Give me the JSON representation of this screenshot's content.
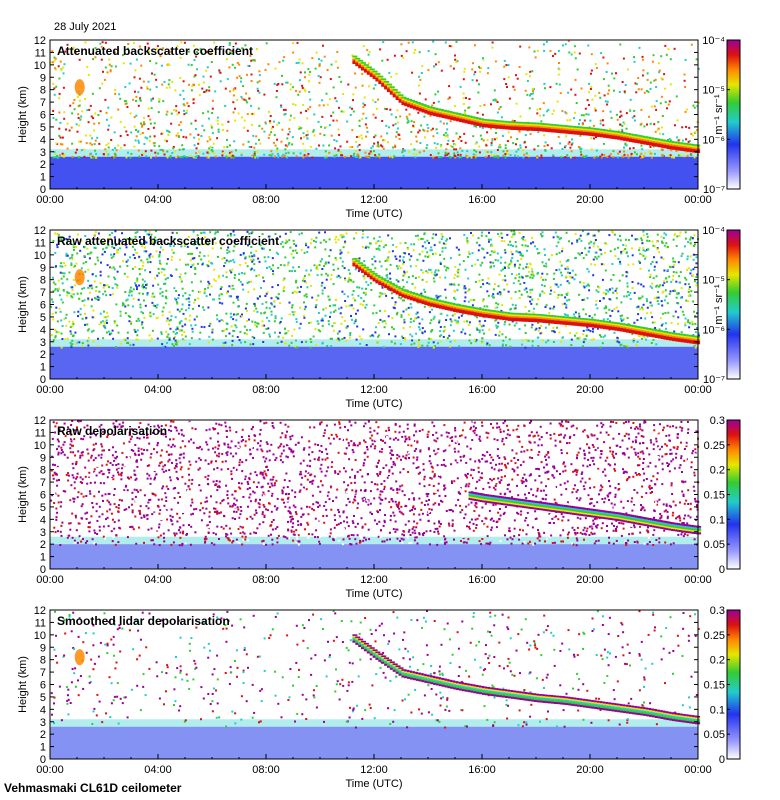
{
  "header": {
    "date": "28 July 2021"
  },
  "footer": {
    "site": "Vehmasmaki CL61D ceilometer"
  },
  "colors": {
    "white": "#ffffff",
    "blue": "#2233ee",
    "cyan": "#22cccc",
    "green": "#33cc33",
    "yellow": "#e6e600",
    "orange": "#ff8800",
    "red": "#dd1111",
    "purple": "#990099"
  },
  "chart_data": [
    {
      "type": "heatmap",
      "title": "Attenuated backscatter coefficient",
      "xlabel": "Time (UTC)",
      "ylabel": "Height (km)",
      "x_ticks": [
        "00:00",
        "04:00",
        "08:00",
        "12:00",
        "16:00",
        "20:00",
        "00:00"
      ],
      "xlim_hours": [
        0,
        24
      ],
      "y_ticks": [
        0,
        1,
        2,
        3,
        4,
        5,
        6,
        7,
        8,
        9,
        10,
        11,
        12
      ],
      "ylim": [
        0,
        12
      ],
      "colorbar": {
        "scale": "log",
        "unit": "m⁻¹ sr⁻¹",
        "labels": [
          "10⁻⁴",
          "10⁻⁵",
          "10⁻⁶",
          "10⁻⁷"
        ],
        "range": [
          1e-07,
          0.0001
        ]
      },
      "features": {
        "boundary_layer_top_km": 2.6,
        "cloud_layer": {
          "hours": [
            11.2,
            12,
            13,
            14,
            15,
            16,
            17,
            18,
            19,
            20,
            21,
            22,
            23,
            24
          ],
          "height_km": [
            10.5,
            9.2,
            7.2,
            6.4,
            5.9,
            5.4,
            5.2,
            5.1,
            4.9,
            4.7,
            4.4,
            4.0,
            3.6,
            3.3
          ]
        }
      }
    },
    {
      "type": "heatmap",
      "title": "Raw attenuated backscatter coefficient",
      "xlabel": "Time (UTC)",
      "ylabel": "Height (km)",
      "x_ticks": [
        "00:00",
        "04:00",
        "08:00",
        "12:00",
        "16:00",
        "20:00",
        "00:00"
      ],
      "xlim_hours": [
        0,
        24
      ],
      "y_ticks": [
        0,
        1,
        2,
        3,
        4,
        5,
        6,
        7,
        8,
        9,
        10,
        11,
        12
      ],
      "ylim": [
        0,
        12
      ],
      "colorbar": {
        "scale": "log",
        "unit": "m⁻¹ sr⁻¹",
        "labels": [
          "10⁻⁴",
          "10⁻⁵",
          "10⁻⁶",
          "10⁻⁷"
        ],
        "range": [
          1e-07,
          0.0001
        ]
      },
      "features": {
        "boundary_layer_top_km": 2.6,
        "cloud_layer": {
          "hours": [
            11.2,
            12,
            13,
            14,
            15,
            16,
            17,
            18,
            19,
            20,
            21,
            22,
            23,
            24
          ],
          "height_km": [
            9.5,
            8.2,
            7.0,
            6.3,
            5.8,
            5.4,
            5.1,
            5.0,
            4.8,
            4.6,
            4.3,
            3.9,
            3.5,
            3.2
          ]
        }
      }
    },
    {
      "type": "heatmap",
      "title": "Raw depolarisation",
      "xlabel": "Time (UTC)",
      "ylabel": "Height (km)",
      "x_ticks": [
        "00:00",
        "04:00",
        "08:00",
        "12:00",
        "16:00",
        "20:00",
        "00:00"
      ],
      "xlim_hours": [
        0,
        24
      ],
      "y_ticks": [
        0,
        1,
        2,
        3,
        4,
        5,
        6,
        7,
        8,
        9,
        10,
        11,
        12
      ],
      "ylim": [
        0,
        12
      ],
      "colorbar": {
        "scale": "linear",
        "unit": "",
        "labels": [
          "0.3",
          "0.25",
          "0.2",
          "0.15",
          "0.1",
          "0.05",
          "0"
        ],
        "range": [
          0,
          0.3
        ]
      },
      "features": {
        "boundary_layer_top_km": 2.0,
        "cloud_layer": {
          "hours": [
            15.5,
            16,
            17,
            18,
            19,
            20,
            21,
            22,
            23,
            24
          ],
          "height_km": [
            6.0,
            5.8,
            5.5,
            5.2,
            4.9,
            4.6,
            4.3,
            3.9,
            3.5,
            3.2
          ]
        }
      }
    },
    {
      "type": "heatmap",
      "title": "Smoothed lidar depolarisation",
      "xlabel": "Time (UTC)",
      "ylabel": "Height (km)",
      "x_ticks": [
        "00:00",
        "04:00",
        "08:00",
        "12:00",
        "16:00",
        "20:00",
        "00:00"
      ],
      "xlim_hours": [
        0,
        24
      ],
      "y_ticks": [
        0,
        1,
        2,
        3,
        4,
        5,
        6,
        7,
        8,
        9,
        10,
        11,
        12
      ],
      "ylim": [
        0,
        12
      ],
      "colorbar": {
        "scale": "linear",
        "unit": "",
        "labels": [
          "0.3",
          "0.25",
          "0.2",
          "0.15",
          "0.1",
          "0.05",
          "0"
        ],
        "range": [
          0,
          0.3
        ]
      },
      "features": {
        "boundary_layer_top_km": 2.6,
        "cloud_layer": {
          "hours": [
            11.2,
            12,
            13,
            14,
            15,
            16,
            17,
            18,
            19,
            20,
            21,
            22,
            23,
            24
          ],
          "height_km": [
            9.8,
            8.5,
            7.0,
            6.5,
            6.0,
            5.6,
            5.3,
            5.0,
            4.8,
            4.5,
            4.2,
            3.9,
            3.5,
            3.2
          ]
        }
      }
    }
  ]
}
